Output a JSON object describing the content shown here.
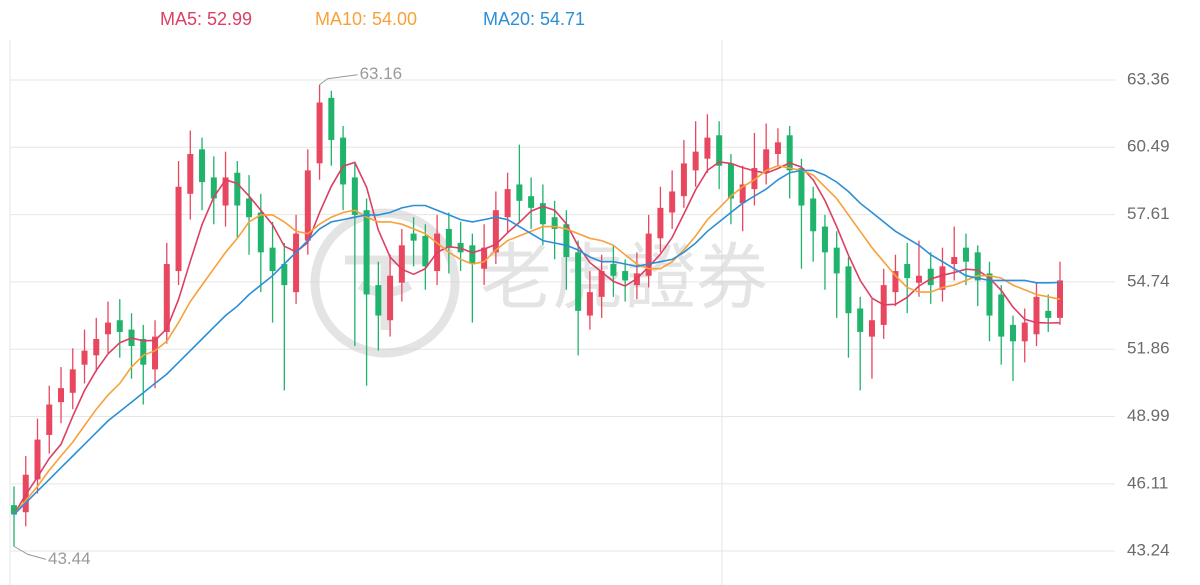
{
  "chart_data": {
    "type": "candlestick",
    "watermark": "老虎證券",
    "up_color": "#e8475f",
    "down_color": "#1fb36b",
    "ylim": [
      41.79,
      65.07
    ],
    "yticks": [
      43.24,
      46.11,
      48.99,
      51.86,
      54.74,
      57.61,
      60.49,
      63.36
    ],
    "grid": true,
    "candles": {
      "open": [
        45.2,
        44.9,
        46.3,
        48.2,
        49.6,
        50.0,
        51.2,
        51.6,
        52.5,
        53.1,
        52.7,
        52.3,
        51.0,
        52.6,
        55.2,
        58.5,
        60.4,
        59.2,
        58.0,
        59.4,
        58.3,
        57.7,
        56.2,
        55.5,
        54.3,
        56.5,
        59.8,
        62.6,
        60.9,
        59.2,
        57.8,
        54.6,
        53.1,
        54.7,
        56.8,
        56.7,
        55.2,
        57.0,
        56.4,
        56.3,
        55.3,
        56.0,
        57.5,
        58.9,
        58.4,
        58.1,
        57.5,
        57.2,
        56.0,
        53.3,
        54.1,
        55.5,
        55.2,
        54.6,
        55.0,
        56.6,
        57.7,
        58.4,
        59.5,
        60.0,
        61.0,
        59.8,
        58.1,
        58.7,
        59.4,
        60.2,
        61.0,
        59.6,
        58.3,
        57.1,
        56.2,
        55.4,
        53.6,
        52.4,
        52.9,
        54.3,
        55.5,
        54.7,
        55.3,
        54.4,
        55.5,
        56.2,
        56.0,
        55.1,
        54.2,
        52.9,
        52.2,
        52.5,
        53.5,
        53.2
      ],
      "high": [
        46.0,
        47.3,
        48.9,
        50.3,
        51.1,
        51.9,
        52.7,
        53.2,
        53.9,
        54.0,
        53.4,
        52.9,
        53.1,
        56.4,
        59.9,
        61.2,
        60.9,
        60.1,
        60.3,
        59.9,
        59.3,
        58.5,
        57.3,
        56.4,
        57.6,
        60.4,
        63.16,
        62.9,
        61.4,
        59.8,
        58.3,
        55.6,
        55.9,
        57.0,
        57.5,
        57.2,
        57.6,
        57.7,
        57.3,
        56.8,
        57.2,
        58.6,
        59.4,
        60.6,
        59.2,
        58.9,
        58.2,
        57.8,
        56.5,
        55.2,
        55.9,
        56.3,
        55.7,
        56.0,
        57.6,
        58.8,
        59.5,
        60.8,
        61.6,
        61.9,
        61.6,
        60.2,
        59.7,
        61.1,
        61.5,
        61.3,
        61.4,
        60.0,
        58.8,
        57.6,
        56.9,
        55.8,
        54.1,
        54.0,
        55.3,
        55.9,
        56.4,
        56.5,
        56.0,
        56.2,
        57.1,
        56.8,
        56.3,
        55.6,
        54.6,
        53.3,
        53.6,
        54.7,
        54.2,
        55.6
      ],
      "low": [
        43.44,
        44.3,
        45.7,
        47.4,
        48.7,
        49.3,
        50.4,
        50.9,
        51.7,
        51.5,
        50.6,
        49.5,
        50.2,
        52.1,
        54.6,
        57.4,
        57.8,
        57.2,
        57.1,
        56.6,
        55.9,
        54.3,
        53.0,
        50.1,
        53.8,
        55.9,
        59.1,
        59.7,
        57.8,
        52.0,
        50.3,
        51.8,
        52.4,
        53.9,
        55.4,
        54.4,
        54.6,
        55.1,
        55.2,
        53.0,
        54.6,
        55.5,
        56.8,
        57.3,
        57.0,
        56.3,
        55.7,
        54.4,
        51.6,
        52.7,
        53.2,
        54.1,
        53.9,
        54.0,
        54.5,
        56.0,
        57.0,
        57.9,
        58.8,
        59.4,
        58.7,
        57.2,
        56.9,
        58.0,
        58.9,
        59.7,
        58.3,
        55.3,
        55.6,
        54.4,
        53.2,
        51.5,
        50.1,
        50.6,
        52.3,
        53.7,
        53.4,
        54.1,
        53.8,
        53.9,
        54.8,
        54.6,
        53.7,
        52.2,
        51.2,
        50.5,
        51.3,
        52.0,
        52.6,
        52.9
      ],
      "close": [
        44.8,
        46.5,
        48.0,
        49.5,
        50.2,
        51.0,
        51.8,
        52.3,
        53.0,
        52.6,
        52.0,
        51.2,
        52.4,
        55.5,
        58.8,
        60.2,
        59.0,
        58.3,
        59.2,
        58.0,
        57.5,
        56.0,
        55.2,
        54.6,
        56.8,
        59.5,
        62.4,
        60.8,
        58.9,
        57.6,
        54.2,
        53.3,
        55.0,
        56.3,
        56.5,
        55.4,
        56.8,
        56.2,
        56.0,
        55.5,
        56.2,
        57.8,
        58.7,
        58.2,
        57.9,
        57.2,
        57.0,
        55.8,
        53.5,
        54.3,
        55.2,
        55.0,
        54.8,
        55.1,
        56.8,
        57.9,
        58.6,
        59.8,
        60.3,
        60.9,
        59.7,
        58.3,
        58.9,
        59.6,
        60.4,
        60.7,
        59.5,
        58.0,
        56.9,
        56.0,
        55.1,
        53.4,
        52.6,
        53.1,
        54.6,
        55.2,
        54.9,
        55.0,
        54.6,
        55.4,
        55.8,
        55.6,
        54.8,
        53.3,
        52.4,
        52.2,
        53.0,
        54.1,
        53.2,
        54.8
      ]
    },
    "series": [
      {
        "name": "MA5",
        "legend": "MA5: 52.99",
        "color": "#dc3f63",
        "values": [
          44.8,
          45.65,
          46.4,
          47.2,
          47.8,
          49.0,
          50.1,
          50.96,
          51.66,
          52.14,
          52.34,
          52.22,
          52.24,
          52.74,
          53.98,
          55.62,
          57.18,
          58.36,
          59.1,
          58.94,
          58.4,
          57.8,
          57.18,
          56.26,
          56.02,
          56.42,
          57.7,
          58.82,
          59.68,
          59.84,
          58.78,
          56.96,
          55.8,
          55.28,
          55.06,
          55.3,
          56.0,
          56.24,
          56.18,
          55.98,
          56.14,
          56.34,
          56.84,
          57.28,
          57.76,
          57.96,
          57.8,
          57.22,
          56.28,
          55.56,
          55.16,
          54.76,
          54.56,
          54.88,
          55.38,
          55.92,
          56.64,
          57.64,
          58.68,
          59.5,
          59.86,
          59.8,
          59.62,
          59.48,
          59.38,
          59.58,
          59.82,
          59.64,
          59.1,
          58.22,
          57.1,
          55.88,
          54.8,
          54.04,
          53.76,
          53.78,
          54.08,
          54.56,
          54.86,
          55.02,
          55.14,
          55.28,
          55.24,
          54.9,
          54.38,
          53.66,
          53.14,
          53.0,
          52.98,
          52.99
        ]
      },
      {
        "name": "MA10",
        "legend": "MA10: 54.00",
        "color": "#f7a13a",
        "values": [
          44.8,
          45.4,
          46.0,
          46.7,
          47.3,
          47.9,
          48.6,
          49.3,
          49.9,
          50.4,
          51.1,
          51.6,
          51.8,
          52.2,
          53.0,
          53.9,
          54.6,
          55.3,
          56.0,
          56.6,
          57.3,
          57.6,
          57.6,
          57.3,
          56.9,
          56.8,
          57.2,
          57.5,
          57.7,
          57.8,
          57.5,
          57.3,
          57.3,
          57.2,
          57.0,
          56.8,
          56.4,
          56.0,
          55.7,
          55.5,
          55.6,
          56.1,
          56.5,
          56.7,
          56.9,
          57.1,
          57.1,
          57.0,
          56.8,
          56.6,
          56.5,
          56.3,
          55.9,
          55.5,
          55.3,
          55.3,
          55.6,
          56.1,
          56.7,
          57.4,
          57.9,
          58.4,
          58.8,
          59.1,
          59.5,
          59.7,
          59.6,
          59.5,
          59.3,
          58.8,
          58.3,
          57.6,
          56.9,
          56.2,
          55.6,
          55.0,
          54.5,
          54.3,
          54.3,
          54.5,
          54.6,
          54.8,
          55.0,
          55.0,
          54.9,
          54.6,
          54.4,
          54.2,
          54.1,
          54.0
        ]
      },
      {
        "name": "MA20",
        "legend": "MA20: 54.71",
        "color": "#2c8fd6",
        "values": [
          44.8,
          45.3,
          45.8,
          46.3,
          46.8,
          47.3,
          47.8,
          48.3,
          48.8,
          49.2,
          49.6,
          50.0,
          50.4,
          50.8,
          51.3,
          51.8,
          52.3,
          52.8,
          53.3,
          53.7,
          54.2,
          54.6,
          55.0,
          55.5,
          56.0,
          56.5,
          57.0,
          57.3,
          57.4,
          57.5,
          57.6,
          57.6,
          57.7,
          57.9,
          58.0,
          58.0,
          57.8,
          57.6,
          57.4,
          57.3,
          57.4,
          57.5,
          57.4,
          57.1,
          56.8,
          56.5,
          56.4,
          56.3,
          56.1,
          55.8,
          55.6,
          55.6,
          55.5,
          55.4,
          55.5,
          55.6,
          55.7,
          56.0,
          56.4,
          56.9,
          57.3,
          57.7,
          58.1,
          58.4,
          58.7,
          59.1,
          59.4,
          59.5,
          59.5,
          59.3,
          59.0,
          58.6,
          58.1,
          57.7,
          57.3,
          56.9,
          56.6,
          56.3,
          55.9,
          55.6,
          55.3,
          55.0,
          54.9,
          54.8,
          54.8,
          54.8,
          54.8,
          54.7,
          54.7,
          54.71
        ]
      }
    ]
  }
}
